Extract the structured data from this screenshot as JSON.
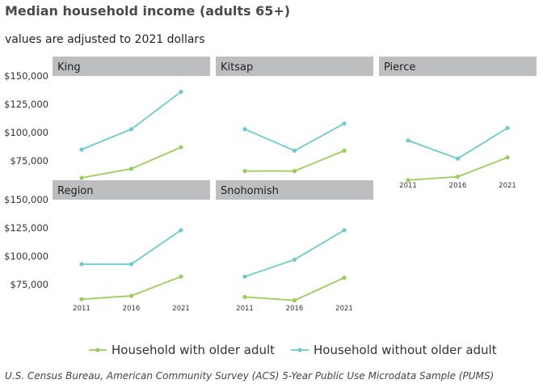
{
  "chart_data": {
    "type": "line",
    "title": "Median household income (adults 65+)",
    "subtitle": "values are adjusted to 2021 dollars",
    "caption": "U.S. Census Bureau, American Community Survey (ACS) 5-Year Public Use Microdata Sample (PUMS)",
    "x": [
      "2011",
      "2016",
      "2021"
    ],
    "y_ticks": [
      "$75,000",
      "$100,000",
      "$125,000",
      "$150,000"
    ],
    "ylim": [
      55000,
      150000
    ],
    "series_info": [
      {
        "name": "Household with older adult",
        "color": "#9acd57"
      },
      {
        "name": "Household without older adult",
        "color": "#6ccccc"
      }
    ],
    "panels": [
      {
        "name": "King",
        "values": [
          [
            60000,
            68000,
            87000
          ],
          [
            85000,
            103000,
            136000
          ]
        ]
      },
      {
        "name": "Kitsap",
        "values": [
          [
            66000,
            66000,
            84000
          ],
          [
            103000,
            84000,
            108000
          ]
        ]
      },
      {
        "name": "Pierce",
        "values": [
          [
            58000,
            61000,
            78000
          ],
          [
            93000,
            77000,
            104000
          ]
        ]
      },
      {
        "name": "Region",
        "values": [
          [
            62000,
            65000,
            82000
          ],
          [
            93000,
            93000,
            123000
          ]
        ]
      },
      {
        "name": "Snohomish",
        "values": [
          [
            64000,
            61000,
            81000
          ],
          [
            82000,
            97000,
            123000
          ]
        ]
      }
    ]
  }
}
